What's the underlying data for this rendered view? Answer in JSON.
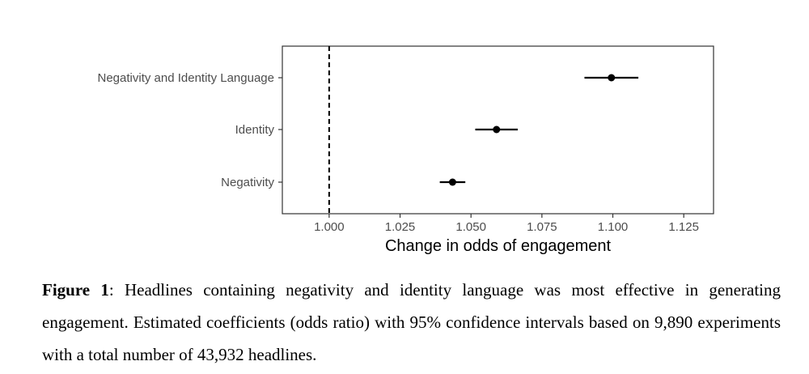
{
  "chart_data": {
    "type": "scatter",
    "subtype": "coefficient-plot",
    "categories": [
      "Negativity and Identity Language",
      "Identity",
      "Negativity"
    ],
    "series": [
      {
        "estimates": [
          1.0995,
          1.059,
          1.0435
        ],
        "ci_low": [
          1.09,
          1.0515,
          1.039
        ],
        "ci_high": [
          1.109,
          1.0665,
          1.048
        ]
      }
    ],
    "reference_line": {
      "x": 1.0,
      "style": "dashed"
    },
    "xlabel": "Change in odds of engagement",
    "ylabel": "",
    "xlim": [
      0.9835,
      1.1355
    ],
    "x_ticks": [
      1.0,
      1.025,
      1.05,
      1.075,
      1.1,
      1.125
    ],
    "x_tick_labels": [
      "1.000",
      "1.025",
      "1.050",
      "1.075",
      "1.100",
      "1.125"
    ],
    "grid": false,
    "colors": {
      "point": "#000000",
      "frame": "#333333"
    }
  },
  "caption": {
    "label": "Figure 1",
    "text": ": Headlines containing negativity and identity language was most effective in generating engagement. Estimated coefficients (odds ratio) with 95% confidence intervals based on 9,890 experiments with a total number of 43,932 headlines."
  }
}
